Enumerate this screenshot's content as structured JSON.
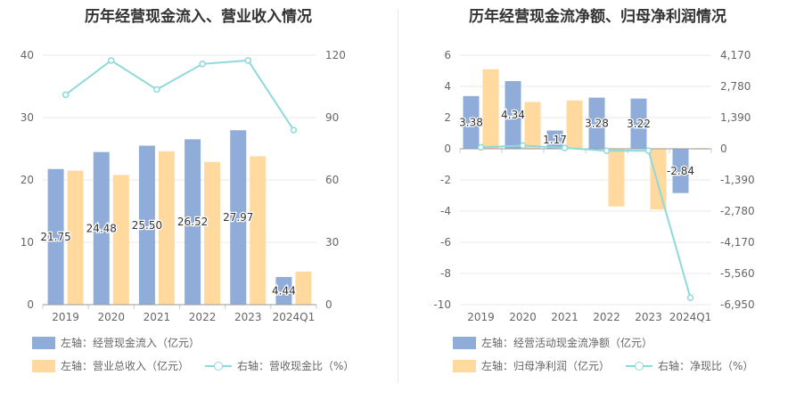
{
  "colors": {
    "blue": "#8fadd8",
    "orange": "#ffd99e",
    "cyan": "#8fd8dc",
    "grid": "#e8e8e8",
    "axis_text": "#666666"
  },
  "chart_data": [
    {
      "type": "bar",
      "title": "历年经营现金流入、营业收入情况",
      "categories": [
        "2019",
        "2020",
        "2021",
        "2022",
        "2023",
        "2024Q1"
      ],
      "left_axis": {
        "ylim": [
          0,
          40
        ],
        "ticks": [
          "0",
          "10",
          "20",
          "30",
          "40"
        ]
      },
      "right_axis": {
        "ylim": [
          0,
          120
        ],
        "ticks": [
          "0",
          "30",
          "60",
          "90",
          "120"
        ]
      },
      "series": [
        {
          "name": "左轴：经营现金流入（亿元）",
          "kind": "bar",
          "axis": "left",
          "color": "#8fadd8",
          "values": [
            21.75,
            24.48,
            25.5,
            26.52,
            27.97,
            4.44
          ],
          "labels": [
            "21.75",
            "24.48",
            "25.50",
            "26.52",
            "27.97",
            "4.44"
          ]
        },
        {
          "name": "左轴：营业总收入（亿元）",
          "kind": "bar",
          "axis": "left",
          "color": "#ffd99e",
          "values": [
            21.5,
            20.8,
            24.6,
            22.9,
            23.8,
            5.3
          ]
        },
        {
          "name": "右轴：营收现金比（%）",
          "kind": "line",
          "axis": "right",
          "color": "#8fd8dc",
          "values": [
            101,
            117.5,
            103.5,
            115.8,
            117.5,
            84
          ]
        }
      ]
    },
    {
      "type": "bar",
      "title": "历年经营现金流净额、归母净利润情况",
      "categories": [
        "2019",
        "2020",
        "2021",
        "2022",
        "2023",
        "2024Q1"
      ],
      "left_axis": {
        "ylim": [
          -10,
          6
        ],
        "ticks": [
          "-10",
          "-8",
          "-6",
          "-4",
          "-2",
          "0",
          "2",
          "4",
          "6"
        ]
      },
      "right_axis": {
        "ylim": [
          -6950,
          4170
        ],
        "ticks": [
          "-6,950",
          "-5,560",
          "-4,170",
          "-2,780",
          "-1,390",
          "0",
          "1,390",
          "2,780",
          "4,170"
        ]
      },
      "series": [
        {
          "name": "左轴：经营活动现金流净额（亿元）",
          "kind": "bar",
          "axis": "left",
          "color": "#8fadd8",
          "values": [
            3.38,
            4.34,
            1.17,
            3.28,
            3.22,
            -2.84
          ],
          "labels": [
            "3.38",
            "4.34",
            "1.17",
            "3.28",
            "3.22",
            "-2.84"
          ]
        },
        {
          "name": "左轴：归母净利润（亿元）",
          "kind": "bar",
          "axis": "left",
          "color": "#ffd99e",
          "values": [
            5.1,
            3.0,
            3.1,
            -3.7,
            -3.9,
            -0.05
          ]
        },
        {
          "name": "右轴：净现比（%）",
          "kind": "line",
          "axis": "right",
          "color": "#8fd8dc",
          "values": [
            66,
            145,
            38,
            -89,
            -83,
            -6640
          ]
        }
      ]
    }
  ]
}
